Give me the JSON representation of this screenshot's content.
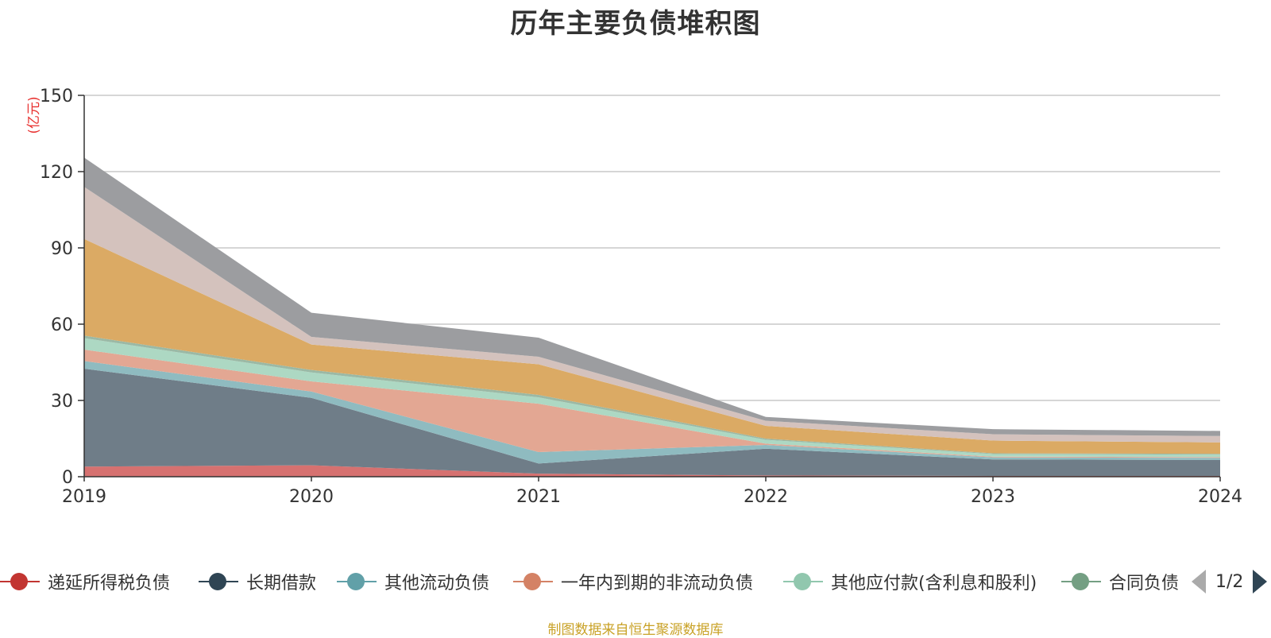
{
  "title": "历年主要负债堆积图",
  "source_note": "制图数据来自恒生聚源数据库",
  "pager_text": "1/2",
  "chart_data": {
    "type": "area",
    "stacked": true,
    "title": "历年主要负债堆积图",
    "ylabel": "(亿元)",
    "ylim": [
      0,
      150
    ],
    "yticks": [
      0,
      30,
      60,
      90,
      120,
      150
    ],
    "grid": true,
    "legend_position": "bottom",
    "x": [
      "2019",
      "2020",
      "2021",
      "2022",
      "2023",
      "2024"
    ],
    "series": [
      {
        "name": "递延所得税负债",
        "color": "#c23531",
        "fill": "#d67170",
        "values": [
          4,
          4.5,
          1.2,
          0.5,
          0.3,
          0.3
        ]
      },
      {
        "name": "长期借款",
        "color": "#2f4554",
        "fill": "#6f7d88",
        "values": [
          38.5,
          26.5,
          4,
          10.5,
          6.5,
          6.3
        ]
      },
      {
        "name": "其他流动负债",
        "color": "#61a0a8",
        "fill": "#8fbbc0",
        "values": [
          3,
          2.5,
          4.5,
          1.5,
          0.8,
          0.8
        ]
      },
      {
        "name": "一年内到期的非流动负债",
        "color": "#d48265",
        "fill": "#e3a793",
        "values": [
          4.5,
          4,
          19,
          0.5,
          0.3,
          0.3
        ]
      },
      {
        "name": "其他应付款(含利息和股利)",
        "color": "#91c7ae",
        "fill": "#add8c3",
        "values": [
          4.5,
          3.5,
          2.5,
          1.5,
          1,
          1
        ]
      },
      {
        "name": "合同负债",
        "color": "#749f83",
        "fill": "#9bb9a5",
        "values": [
          1,
          1,
          1,
          0.5,
          0.3,
          0.3
        ]
      },
      {
        "name": "",
        "color": "#ca8622",
        "fill": "#dbaa64",
        "values": [
          38,
          10,
          12,
          5,
          5,
          4.5
        ]
      },
      {
        "name": "",
        "color": "#bda29a",
        "fill": "#d4c2bd",
        "values": [
          20.5,
          3,
          3,
          2,
          2.5,
          2.5
        ]
      },
      {
        "name": "",
        "color": "#6e7074",
        "fill": "#9c9da0",
        "values": [
          11.5,
          9.5,
          7.5,
          1.5,
          2,
          2
        ]
      }
    ]
  }
}
